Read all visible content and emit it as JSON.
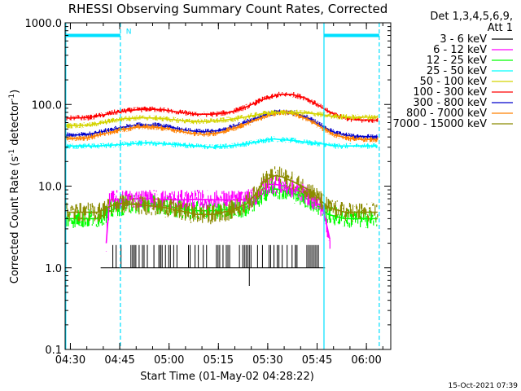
{
  "chart_data": {
    "type": "line",
    "title": "RHESSI Observing Summary Count Rates, Corrected",
    "xlabel": "Start Time (01-May-02 04:28:22)",
    "ylabel": "Corrected Count Rate (s",
    "ylabel_sup1": "-1",
    "ylabel_mid": " detector",
    "ylabel_sup2": "-1",
    "ylabel_end": ")",
    "yscale": "log",
    "xlim_minutes": [
      0,
      99
    ],
    "ylim": [
      0.1,
      1000
    ],
    "x_ticks": [
      {
        "label": "04:30",
        "minute": 1.6
      },
      {
        "label": "04:45",
        "minute": 16.6
      },
      {
        "label": "05:00",
        "minute": 31.6
      },
      {
        "label": "05:15",
        "minute": 46.6
      },
      {
        "label": "05:30",
        "minute": 61.6
      },
      {
        "label": "05:45",
        "minute": 76.6
      },
      {
        "label": "06:00",
        "minute": 91.6
      }
    ],
    "y_ticks": [
      {
        "label": "1000.0",
        "value": 1000
      },
      {
        "label": "100.0",
        "value": 100
      },
      {
        "label": "10.0",
        "value": 10
      },
      {
        "label": "1.0",
        "value": 1
      },
      {
        "label": "0.1",
        "value": 0.1
      }
    ],
    "legend_header": [
      "Det 1,3,4,5,6,9,",
      "Att 1"
    ],
    "legend_placement": "right",
    "night_boundaries_minutes": [
      0.2,
      16.8,
      78.7,
      95.5
    ],
    "saa_segments_minutes": [
      [
        0.2,
        16.8
      ],
      [
        78.7,
        95.5
      ]
    ],
    "annotation": {
      "text": "N",
      "minute": 18.5,
      "value": 730
    },
    "series": [
      {
        "name": "3 - 6 keV",
        "color": "#000000",
        "kind": "spiky",
        "points": [
          [
            10.8,
            1.0
          ],
          [
            12.5,
            1.0
          ],
          [
            13.8,
            1.0
          ],
          [
            14.5,
            1.9
          ],
          [
            15.5,
            1.0
          ],
          [
            17,
            1.9
          ],
          [
            19,
            1.0
          ],
          [
            21,
            1.9
          ],
          [
            23,
            1.0
          ],
          [
            25,
            1.9
          ],
          [
            27,
            1.0
          ],
          [
            29,
            1.9
          ],
          [
            31,
            1.0
          ],
          [
            33,
            1.9
          ],
          [
            35,
            1.0
          ],
          [
            40,
            1.0
          ],
          [
            42,
            1.9
          ],
          [
            43,
            1.0
          ],
          [
            50,
            1.0
          ],
          [
            52,
            1.0
          ],
          [
            54,
            1.9
          ],
          [
            55,
            1.0
          ],
          [
            56,
            0.6
          ],
          [
            57,
            1.0
          ],
          [
            60,
            1.0
          ],
          [
            62,
            1.9
          ],
          [
            64,
            1.0
          ],
          [
            66,
            1.9
          ],
          [
            68,
            1.0
          ],
          [
            70,
            1.9
          ],
          [
            72,
            1.0
          ],
          [
            74,
            1.9
          ],
          [
            76,
            1.0
          ],
          [
            79,
            1.0
          ]
        ]
      },
      {
        "name": "6 - 12 keV",
        "color": "#ff00ff",
        "kind": "band",
        "points": [
          [
            12.5,
            2.0
          ],
          [
            13.5,
            6.8
          ],
          [
            16,
            6.8
          ],
          [
            20,
            7.0
          ],
          [
            25,
            7.0
          ],
          [
            30,
            6.9
          ],
          [
            35,
            6.8
          ],
          [
            40,
            6.9
          ],
          [
            45,
            6.8
          ],
          [
            50,
            6.8
          ],
          [
            55,
            6.8
          ],
          [
            58,
            7.5
          ],
          [
            60,
            9.0
          ],
          [
            62,
            10.5
          ],
          [
            64,
            10.5
          ],
          [
            66,
            10.2
          ],
          [
            68,
            9.5
          ],
          [
            70,
            9.0
          ],
          [
            72,
            8.5
          ],
          [
            74,
            7.5
          ],
          [
            76,
            6.5
          ],
          [
            78,
            5.5
          ],
          [
            79,
            4.2
          ],
          [
            80.5,
            2.2
          ]
        ]
      },
      {
        "name": "12 - 25 keV",
        "color": "#00ff00",
        "kind": "band",
        "points": [
          [
            0.5,
            4.0
          ],
          [
            5,
            4.0
          ],
          [
            10,
            4.0
          ],
          [
            13,
            4.8
          ],
          [
            16,
            5.5
          ],
          [
            20,
            6.0
          ],
          [
            25,
            6.2
          ],
          [
            30,
            5.8
          ],
          [
            35,
            5.3
          ],
          [
            40,
            5.0
          ],
          [
            45,
            5.0
          ],
          [
            50,
            5.2
          ],
          [
            55,
            5.5
          ],
          [
            58,
            6.5
          ],
          [
            60,
            8.0
          ],
          [
            62,
            9.0
          ],
          [
            64,
            9.2
          ],
          [
            66,
            9.0
          ],
          [
            68,
            8.5
          ],
          [
            70,
            8.0
          ],
          [
            72,
            7.5
          ],
          [
            74,
            6.8
          ],
          [
            76,
            6.0
          ],
          [
            78,
            5.2
          ],
          [
            80,
            4.5
          ],
          [
            85,
            4.0
          ],
          [
            90,
            4.0
          ],
          [
            95,
            4.0
          ]
        ]
      },
      {
        "name": "25 - 50 keV",
        "color": "#00ffff",
        "kind": "band",
        "points": [
          [
            0.5,
            31
          ],
          [
            10,
            31
          ],
          [
            15,
            32
          ],
          [
            20,
            33
          ],
          [
            25,
            34
          ],
          [
            30,
            33
          ],
          [
            35,
            32
          ],
          [
            40,
            31
          ],
          [
            45,
            30
          ],
          [
            50,
            31
          ],
          [
            55,
            33
          ],
          [
            60,
            36
          ],
          [
            63,
            38
          ],
          [
            66,
            37
          ],
          [
            70,
            36
          ],
          [
            74,
            34
          ],
          [
            78,
            33
          ],
          [
            82,
            31
          ],
          [
            88,
            31
          ],
          [
            95,
            31
          ]
        ]
      },
      {
        "name": "50 - 100 keV",
        "color": "#d4d400",
        "kind": "band",
        "points": [
          [
            0.5,
            55
          ],
          [
            8,
            56
          ],
          [
            13,
            62
          ],
          [
            18,
            67
          ],
          [
            23,
            69
          ],
          [
            28,
            68
          ],
          [
            33,
            65
          ],
          [
            38,
            62
          ],
          [
            43,
            62
          ],
          [
            48,
            64
          ],
          [
            53,
            68
          ],
          [
            57,
            73
          ],
          [
            61,
            78
          ],
          [
            65,
            80
          ],
          [
            69,
            80
          ],
          [
            73,
            79
          ],
          [
            77,
            76
          ],
          [
            81,
            72
          ],
          [
            86,
            70
          ],
          [
            90,
            70
          ],
          [
            95,
            70
          ]
        ]
      },
      {
        "name": "100 - 300 keV",
        "color": "#ff0000",
        "kind": "band",
        "points": [
          [
            0.5,
            68
          ],
          [
            7,
            69
          ],
          [
            12,
            75
          ],
          [
            15,
            80
          ],
          [
            20,
            85
          ],
          [
            25,
            88
          ],
          [
            30,
            86
          ],
          [
            35,
            80
          ],
          [
            40,
            76
          ],
          [
            45,
            76
          ],
          [
            50,
            80
          ],
          [
            55,
            93
          ],
          [
            60,
            115
          ],
          [
            65,
            132
          ],
          [
            69,
            133
          ],
          [
            73,
            120
          ],
          [
            77,
            98
          ],
          [
            80,
            82
          ],
          [
            84,
            70
          ],
          [
            88,
            65
          ],
          [
            95,
            64
          ]
        ]
      },
      {
        "name": "300 - 800 keV",
        "color": "#0000cc",
        "kind": "band",
        "points": [
          [
            0.5,
            42
          ],
          [
            7,
            43
          ],
          [
            12,
            47
          ],
          [
            17,
            52
          ],
          [
            22,
            56
          ],
          [
            27,
            56
          ],
          [
            32,
            53
          ],
          [
            37,
            48
          ],
          [
            42,
            46
          ],
          [
            47,
            48
          ],
          [
            52,
            55
          ],
          [
            57,
            65
          ],
          [
            62,
            78
          ],
          [
            66,
            82
          ],
          [
            70,
            78
          ],
          [
            74,
            68
          ],
          [
            78,
            55
          ],
          [
            82,
            45
          ],
          [
            87,
            41
          ],
          [
            95,
            40
          ]
        ]
      },
      {
        "name": "800 - 7000 keV",
        "color": "#ff8000",
        "kind": "band",
        "points": [
          [
            0.5,
            38
          ],
          [
            7,
            39
          ],
          [
            12,
            44
          ],
          [
            17,
            49
          ],
          [
            22,
            53
          ],
          [
            27,
            53
          ],
          [
            32,
            50
          ],
          [
            37,
            45
          ],
          [
            42,
            43
          ],
          [
            47,
            45
          ],
          [
            52,
            52
          ],
          [
            57,
            62
          ],
          [
            62,
            75
          ],
          [
            66,
            80
          ],
          [
            70,
            76
          ],
          [
            74,
            65
          ],
          [
            78,
            52
          ],
          [
            82,
            42
          ],
          [
            87,
            38
          ],
          [
            95,
            37
          ]
        ]
      },
      {
        "name": "7000 - 15000 keV",
        "color": "#8b8b00",
        "kind": "band",
        "points": [
          [
            0.5,
            4.8
          ],
          [
            5,
            4.8
          ],
          [
            10,
            4.8
          ],
          [
            13,
            5.5
          ],
          [
            16,
            6.2
          ],
          [
            20,
            6.0
          ],
          [
            25,
            5.8
          ],
          [
            30,
            5.5
          ],
          [
            35,
            5.0
          ],
          [
            40,
            4.5
          ],
          [
            45,
            4.5
          ],
          [
            50,
            5.0
          ],
          [
            55,
            6.0
          ],
          [
            58,
            8.0
          ],
          [
            60,
            11.0
          ],
          [
            62,
            12.5
          ],
          [
            64,
            13.5
          ],
          [
            66,
            13.0
          ],
          [
            68,
            12.0
          ],
          [
            70,
            11.0
          ],
          [
            72,
            10.0
          ],
          [
            74,
            9.0
          ],
          [
            76,
            7.8
          ],
          [
            78,
            6.5
          ],
          [
            80,
            5.5
          ],
          [
            85,
            4.8
          ],
          [
            90,
            4.8
          ],
          [
            95,
            4.8
          ]
        ]
      }
    ]
  },
  "footer_timestamp": "15-Oct-2021 07:39"
}
